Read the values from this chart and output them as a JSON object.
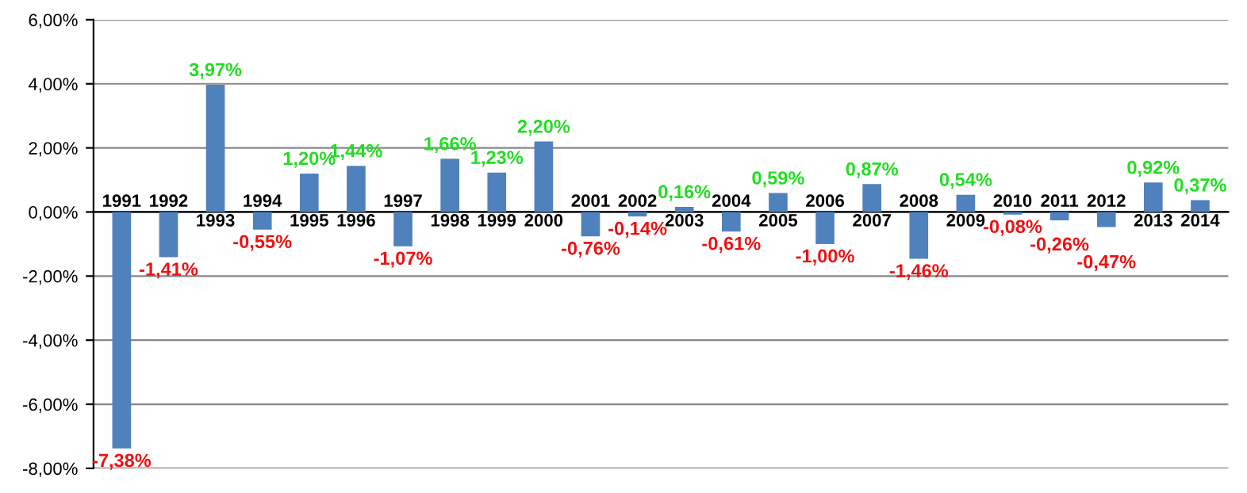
{
  "chart_data": {
    "type": "bar",
    "categories": [
      "1991",
      "1992",
      "1993",
      "1994",
      "1995",
      "1996",
      "1997",
      "1998",
      "1999",
      "2000",
      "2001",
      "2002",
      "2003",
      "2004",
      "2005",
      "2006",
      "2007",
      "2008",
      "2009",
      "2010",
      "2011",
      "2012",
      "2013",
      "2014"
    ],
    "values": [
      -7.38,
      -1.41,
      3.97,
      -0.55,
      1.2,
      1.44,
      -1.07,
      1.66,
      1.23,
      2.2,
      -0.76,
      -0.14,
      0.16,
      -0.61,
      0.59,
      -1.0,
      0.87,
      -1.46,
      0.54,
      -0.08,
      -0.26,
      -0.47,
      0.92,
      0.37
    ],
    "color": "#4f81bd",
    "value_labels": [
      "-7,38%",
      "-1,41%",
      "3,97%",
      "-0,55%",
      "1,20%",
      "1,44%",
      "-1,07%",
      "1,66%",
      "1,23%",
      "2,20%",
      "-0,76%",
      "-0,14%",
      "0,16%",
      "-0,61%",
      "0,59%",
      "-1,00%",
      "0,87%",
      "-1,46%",
      "0,54%",
      "-0,08%",
      "-0,26%",
      "-0,47%",
      "0,92%",
      "0,37%"
    ],
    "ylim": [
      -8,
      6
    ],
    "yticks": [
      {
        "value": -8,
        "label": "-8,00%"
      },
      {
        "value": -6,
        "label": "-6,00%"
      },
      {
        "value": -4,
        "label": "-4,00%"
      },
      {
        "value": -2,
        "label": "-2,00%"
      },
      {
        "value": 0,
        "label": "0,00%"
      },
      {
        "value": 2,
        "label": "2,00%"
      },
      {
        "value": 4,
        "label": "4,00%"
      },
      {
        "value": 6,
        "label": "6,00%"
      }
    ],
    "grid": "y",
    "legend": false
  }
}
